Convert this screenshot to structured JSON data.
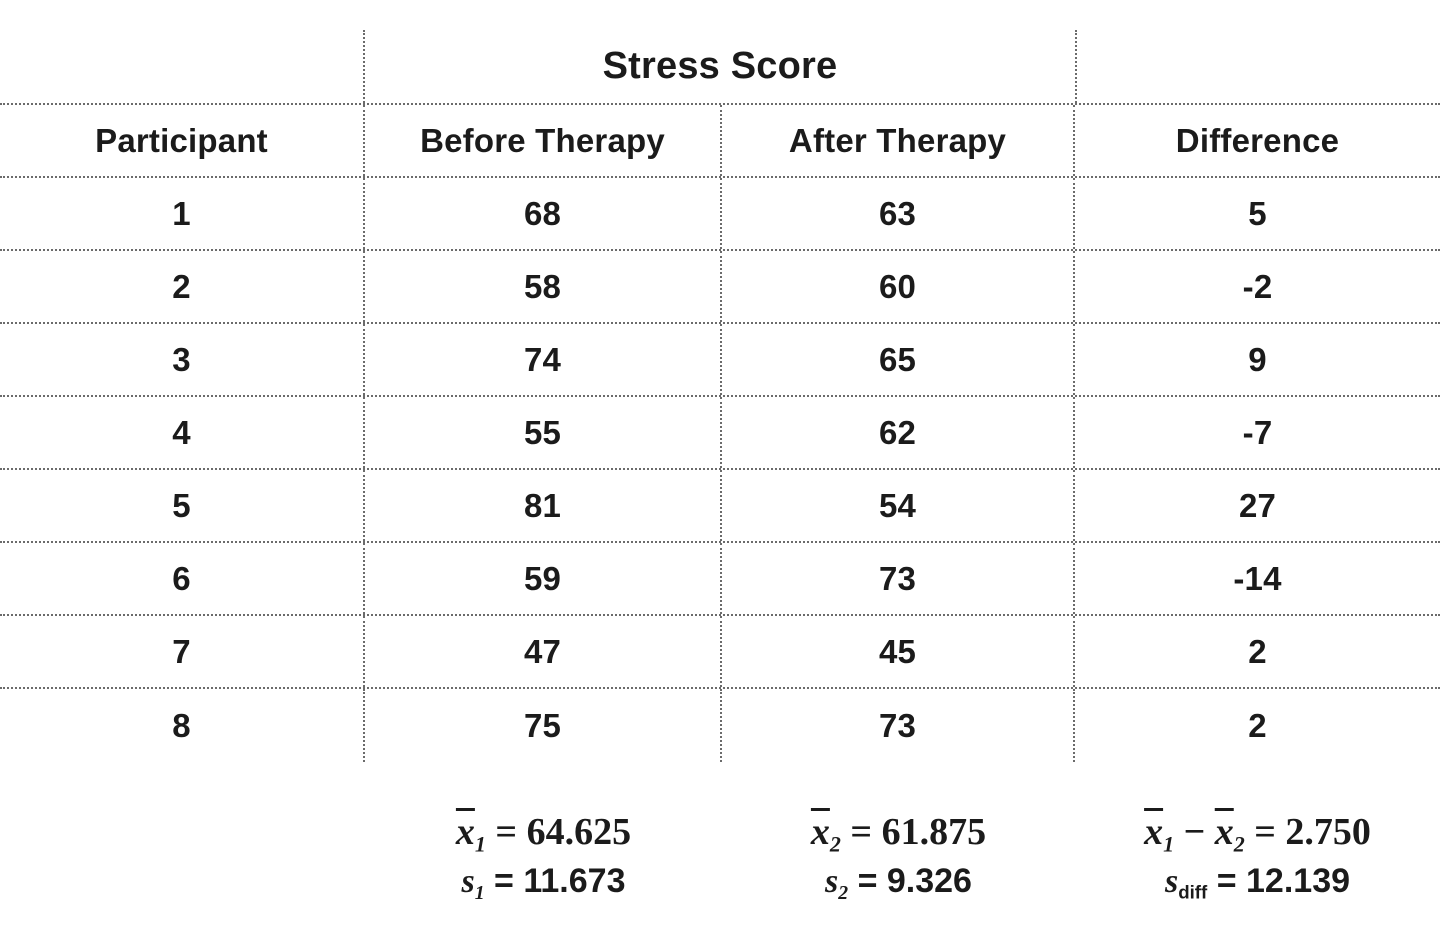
{
  "table": {
    "group_header": "Stress Score",
    "columns": [
      "Participant",
      "Before Therapy",
      "After Therapy",
      "Difference"
    ],
    "rows": [
      {
        "participant": "1",
        "before": "68",
        "after": "63",
        "diff": "5"
      },
      {
        "participant": "2",
        "before": "58",
        "after": "60",
        "diff": "-2"
      },
      {
        "participant": "3",
        "before": "74",
        "after": "65",
        "diff": "9"
      },
      {
        "participant": "4",
        "before": "55",
        "after": "62",
        "diff": "-7"
      },
      {
        "participant": "5",
        "before": "81",
        "after": "54",
        "diff": "27"
      },
      {
        "participant": "6",
        "before": "59",
        "after": "73",
        "diff": "-14"
      },
      {
        "participant": "7",
        "before": "47",
        "after": "45",
        "diff": "2"
      },
      {
        "participant": "8",
        "before": "75",
        "after": "73",
        "diff": "2"
      }
    ]
  },
  "stats": {
    "before": {
      "mean_var": "x",
      "mean_sub": "1",
      "mean_rest": " = 64.625",
      "sd_var": "s",
      "sd_sub": "1",
      "sd_rest": " = 11.673"
    },
    "after": {
      "mean_var": "x",
      "mean_sub": "2",
      "mean_rest": " = 61.875",
      "sd_var": "s",
      "sd_sub": "2",
      "sd_rest": " = 9.326"
    },
    "difference": {
      "mean_var1": "x",
      "mean_sub1": "1",
      "minus": " − ",
      "mean_var2": "x",
      "mean_sub2": "2",
      "mean_rest": " = 2.750",
      "sd_var": "s",
      "sd_sub": "diff",
      "sd_rest": " = 12.139"
    }
  },
  "chart_data": {
    "type": "table",
    "title": "Stress Score",
    "columns": [
      "Participant",
      "Before Therapy",
      "After Therapy",
      "Difference"
    ],
    "rows": [
      [
        1,
        68,
        63,
        5
      ],
      [
        2,
        58,
        60,
        -2
      ],
      [
        3,
        74,
        65,
        9
      ],
      [
        4,
        55,
        62,
        -7
      ],
      [
        5,
        81,
        54,
        27
      ],
      [
        6,
        59,
        73,
        -14
      ],
      [
        7,
        47,
        45,
        2
      ],
      [
        8,
        75,
        73,
        2
      ]
    ],
    "annotations": [
      "x̄1 = 64.625",
      "s1 = 11.673",
      "x̄2 = 61.875",
      "s2 = 9.326",
      "x̄1 − x̄2 = 2.750",
      "sdiff = 12.139"
    ],
    "layout": "group header 'Stress Score' spans Before/After columns; dotted grid lines; no outer border"
  }
}
